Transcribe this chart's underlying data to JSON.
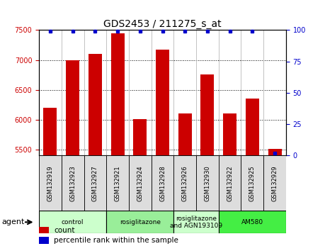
{
  "title": "GDS2453 / 211275_s_at",
  "samples": [
    "GSM132919",
    "GSM132923",
    "GSM132927",
    "GSM132921",
    "GSM132924",
    "GSM132928",
    "GSM132926",
    "GSM132930",
    "GSM132922",
    "GSM132925",
    "GSM132929"
  ],
  "counts": [
    6200,
    7000,
    7100,
    7450,
    6010,
    7170,
    6110,
    6760,
    6110,
    6360,
    5510
  ],
  "percentiles": [
    99,
    99,
    99,
    99,
    99,
    99,
    99,
    99,
    99,
    99,
    2
  ],
  "ylim_left": [
    5400,
    7500
  ],
  "ylim_right": [
    0,
    100
  ],
  "yticks_left": [
    5500,
    6000,
    6500,
    7000,
    7500
  ],
  "yticks_right": [
    0,
    25,
    50,
    75,
    100
  ],
  "bar_color": "#cc0000",
  "dot_color": "#0000cc",
  "grid_color": "#000000",
  "bg_color": "#ffffff",
  "cell_bg": "#dddddd",
  "agent_groups": [
    {
      "label": "control",
      "start": 0,
      "end": 2,
      "color": "#ccffcc"
    },
    {
      "label": "rosiglitazone",
      "start": 3,
      "end": 5,
      "color": "#99ee99"
    },
    {
      "label": "rosiglitazone\nand AGN193109",
      "start": 6,
      "end": 7,
      "color": "#ccffcc"
    },
    {
      "label": "AM580",
      "start": 8,
      "end": 10,
      "color": "#44ee44"
    }
  ],
  "legend_items": [
    {
      "label": "count",
      "color": "#cc0000"
    },
    {
      "label": "percentile rank within the sample",
      "color": "#0000cc"
    }
  ],
  "left_tick_color": "#cc0000",
  "right_tick_color": "#0000cc",
  "title_fontsize": 10,
  "tick_fontsize": 7,
  "bar_width": 0.6,
  "xlim": [
    -0.5,
    10.5
  ]
}
